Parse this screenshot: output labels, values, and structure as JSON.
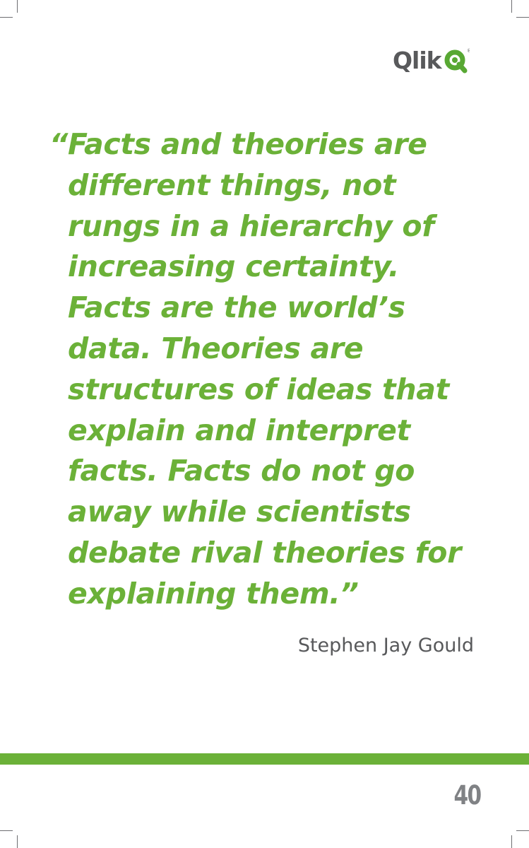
{
  "brand": {
    "name": "Qlik",
    "mark_symbol": "qlik-q-icon",
    "registered": "®",
    "colors": {
      "wordmark": "#58595b",
      "mark": "#58a833"
    }
  },
  "quote": {
    "open_mark": "“",
    "lines": [
      "Facts and theories are",
      "different things, not",
      "rungs in a hierarchy of",
      "increasing certainty.",
      "Facts are the world’s",
      "data. Theories are",
      "structures of ideas that",
      "explain and interpret",
      "facts. Facts do not go",
      "away while scientists",
      "debate rival theories for",
      "explaining them.”"
    ],
    "color": "#6bb138"
  },
  "author": {
    "name": "Stephen Jay Gould",
    "color": "#58595b"
  },
  "footer": {
    "rule_color": "#6bb138",
    "page_number": "40",
    "page_number_color": "#808285"
  }
}
